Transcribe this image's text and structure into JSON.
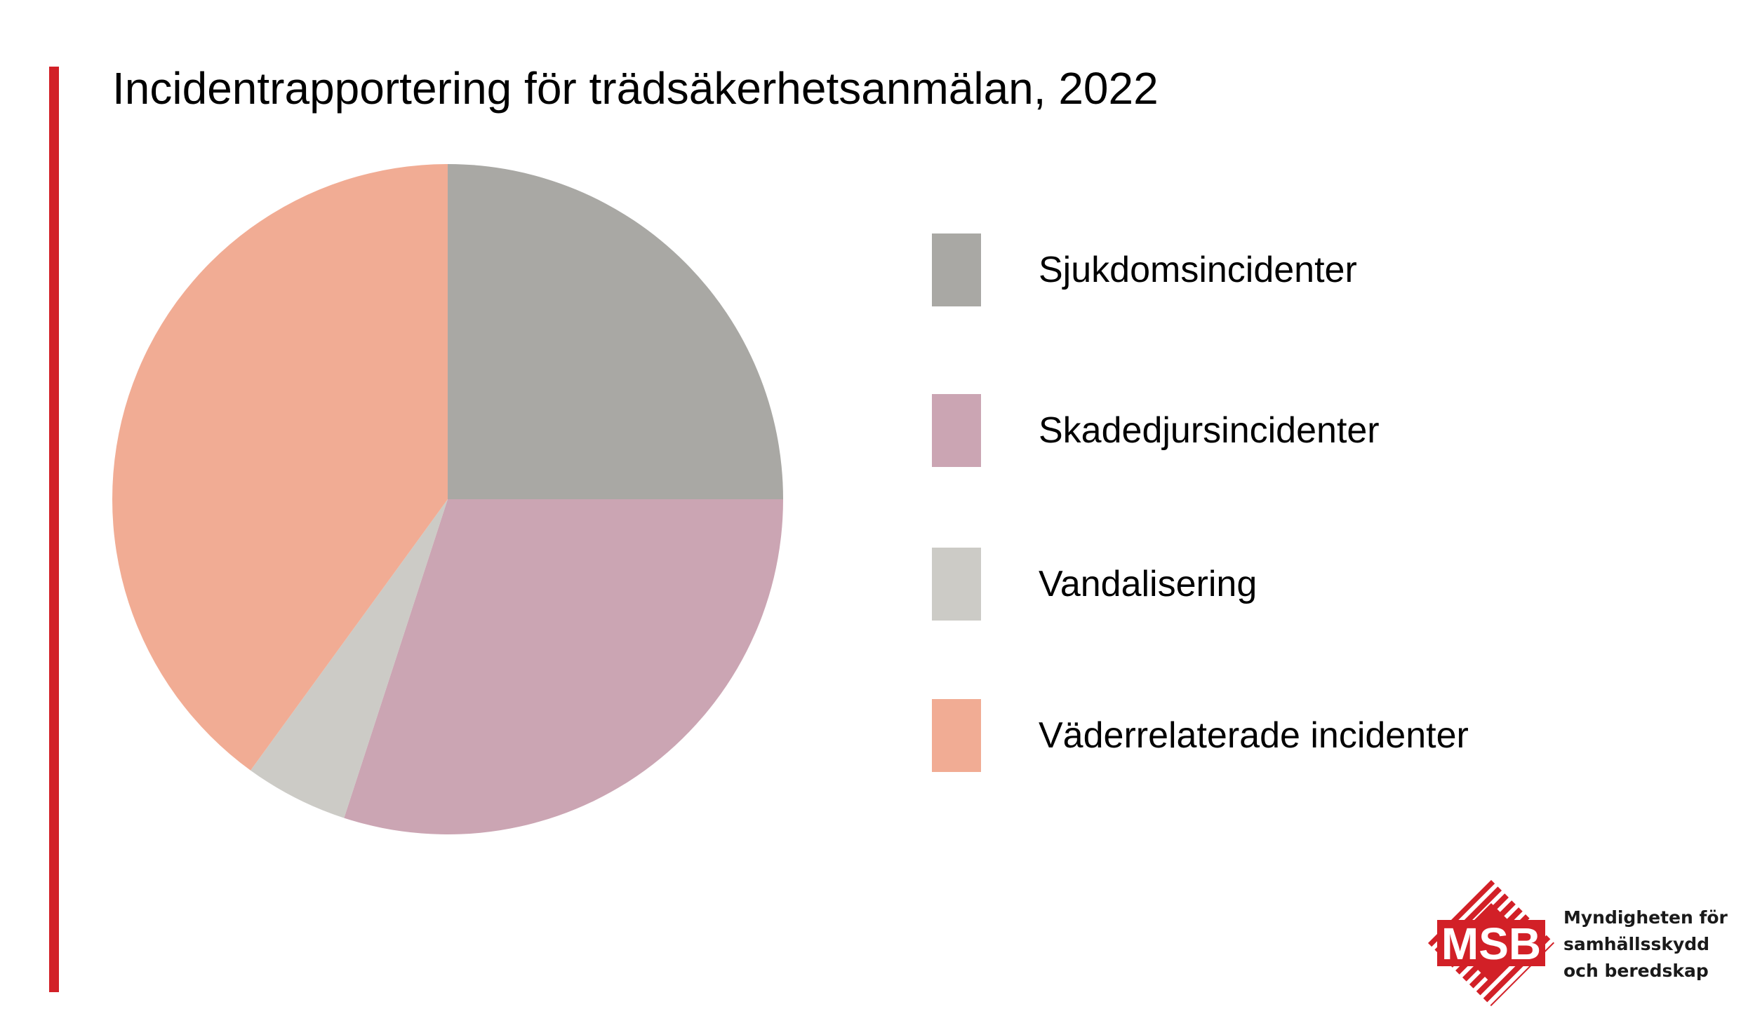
{
  "colors": {
    "accent": "#d22027",
    "logo_red": "#d22027"
  },
  "chart_data": {
    "type": "pie",
    "title": "Incidentrapportering för trädsäkerhetsanmälan, 2022",
    "legend_position": "right",
    "start_angle_deg": 0,
    "direction": "clockwise",
    "slices": [
      {
        "name": "Sjukdomsincidenter",
        "value": 25,
        "color": "#a9a8a4"
      },
      {
        "name": "Skadedjursincidenter",
        "value": 30,
        "color": "#cba5b3"
      },
      {
        "name": "Vandalisering",
        "value": 5,
        "color": "#cccbc6"
      },
      {
        "name": "Väderrelaterade incidenter",
        "value": 40,
        "color": "#f1ac94"
      }
    ]
  },
  "logo": {
    "mark_text": "MSB",
    "lines": [
      "Myndigheten för",
      "samhällsskydd",
      "och beredskap"
    ]
  }
}
